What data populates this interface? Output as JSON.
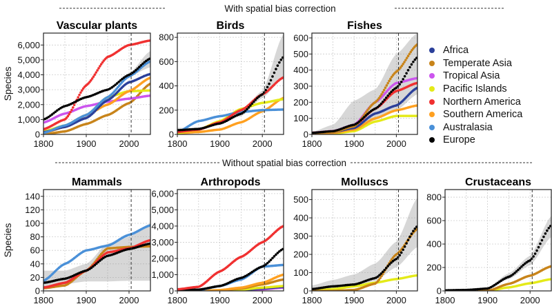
{
  "headers": {
    "top": "With spatial bias correction",
    "bottom": "Without spatial bias correction"
  },
  "legend": [
    {
      "name": "Africa",
      "color": "#2a3f9a"
    },
    {
      "name": "Temperate Asia",
      "color": "#c8841a"
    },
    {
      "name": "Tropical Asia",
      "color": "#cc55ee"
    },
    {
      "name": "Pacific Islands",
      "color": "#e4ea18"
    },
    {
      "name": "Northern America",
      "color": "#f03030"
    },
    {
      "name": "Southern America",
      "color": "#ffa020"
    },
    {
      "name": "Australasia",
      "color": "#4a90d8"
    },
    {
      "name": "Europe",
      "color": "#000000"
    }
  ],
  "chart_data": [
    {
      "type": "line",
      "title": "Vascular plants",
      "ylabel": "Species",
      "xlim": [
        1800,
        2050
      ],
      "ylim": [
        0,
        6800
      ],
      "xticks": [
        1800,
        1900,
        2000
      ],
      "yticks": [
        0,
        1000,
        2000,
        3000,
        4000,
        5000,
        6000
      ],
      "ytick_labels": [
        "0",
        "1,000",
        "2,000",
        "3,000",
        "4,000",
        "5,000",
        "6,000"
      ],
      "vline": 2005,
      "grid": true,
      "x": [
        1800,
        1850,
        1900,
        1950,
        2000,
        2050
      ],
      "series": [
        {
          "name": "Temperate Asia",
          "values": [
            0,
            200,
            700,
            1300,
            2100,
            3400
          ]
        },
        {
          "name": "Tropical Asia",
          "values": [
            800,
            1400,
            1900,
            2200,
            2400,
            2600
          ]
        },
        {
          "name": "Pacific Islands",
          "values": [
            200,
            600,
            1300,
            2500,
            2900,
            2950
          ]
        },
        {
          "name": "Southern America",
          "values": [
            100,
            500,
            1300,
            2000,
            2900,
            3800
          ]
        },
        {
          "name": "Africa",
          "values": [
            150,
            500,
            1100,
            2300,
            3500,
            4050
          ]
        },
        {
          "name": "Australasia",
          "values": [
            100,
            600,
            1300,
            2500,
            3900,
            4900
          ]
        },
        {
          "name": "Northern America",
          "values": [
            350,
            1000,
            3300,
            5200,
            6000,
            6300
          ]
        },
        {
          "name": "Europe",
          "values": [
            1000,
            1900,
            2500,
            3000,
            4000,
            5100
          ],
          "band": {
            "lower": [
              950,
              1850,
              2450,
              2950,
              3900,
              4500
            ],
            "upper": [
              1050,
              1950,
              2550,
              3050,
              4100,
              5600
            ]
          }
        }
      ]
    },
    {
      "type": "line",
      "title": "Birds",
      "ylabel": "",
      "xlim": [
        1800,
        2050
      ],
      "ylim": [
        0,
        835
      ],
      "xticks": [
        1800,
        1900,
        2000
      ],
      "yticks": [
        0,
        200,
        400,
        600,
        800
      ],
      "ytick_labels": [
        "0",
        "200",
        "400",
        "600",
        "800"
      ],
      "vline": 2005,
      "grid": true,
      "x": [
        1800,
        1850,
        1900,
        1950,
        2000,
        2050
      ],
      "series": [
        {
          "name": "Southern America",
          "values": [
            10,
            20,
            40,
            100,
            190,
            300
          ]
        },
        {
          "name": "Pacific Islands",
          "values": [
            10,
            40,
            110,
            210,
            260,
            290
          ]
        },
        {
          "name": "Australasia",
          "values": [
            20,
            110,
            150,
            185,
            200,
            205
          ]
        },
        {
          "name": "Northern America",
          "values": [
            20,
            40,
            100,
            200,
            330,
            470
          ]
        },
        {
          "name": "Europe",
          "values": [
            35,
            45,
            90,
            170,
            330,
            640
          ],
          "band": {
            "lower": [
              25,
              40,
              85,
              150,
              300,
              470
            ],
            "upper": [
              55,
              55,
              100,
              190,
              360,
              830
            ]
          }
        }
      ]
    },
    {
      "type": "line",
      "title": "Fishes",
      "ylabel": "",
      "xlim": [
        1800,
        2050
      ],
      "ylim": [
        0,
        630
      ],
      "xticks": [
        1800,
        1900,
        2000
      ],
      "yticks": [
        0,
        100,
        200,
        300,
        400,
        500,
        600
      ],
      "ytick_labels": [
        "0",
        "100",
        "200",
        "300",
        "400",
        "500",
        "600"
      ],
      "vline": 2005,
      "grid": true,
      "x": [
        1800,
        1850,
        1900,
        1950,
        2000,
        2050
      ],
      "series": [
        {
          "name": "Pacific Islands",
          "values": [
            0,
            5,
            20,
            80,
            115,
            115
          ]
        },
        {
          "name": "Southern America",
          "values": [
            5,
            10,
            30,
            100,
            150,
            180
          ]
        },
        {
          "name": "Africa",
          "values": [
            10,
            15,
            40,
            130,
            180,
            290
          ]
        },
        {
          "name": "Northern America",
          "values": [
            10,
            20,
            55,
            160,
            270,
            320
          ]
        },
        {
          "name": "Tropical Asia",
          "values": [
            10,
            20,
            60,
            200,
            320,
            350
          ]
        },
        {
          "name": "Temperate Asia",
          "values": [
            10,
            15,
            50,
            200,
            390,
            560
          ]
        },
        {
          "name": "Europe",
          "values": [
            10,
            20,
            60,
            160,
            290,
            480
          ],
          "band": {
            "lower": [
              5,
              10,
              30,
              90,
              150,
              250
            ],
            "upper": [
              15,
              60,
              210,
              280,
              500,
              630
            ]
          }
        }
      ]
    },
    {
      "type": "line",
      "title": "Mammals",
      "ylabel": "Species",
      "xlim": [
        1800,
        2050
      ],
      "ylim": [
        0,
        150
      ],
      "xticks": [
        1800,
        1900,
        2000
      ],
      "yticks": [
        0,
        20,
        40,
        60,
        80,
        100,
        120,
        140
      ],
      "ytick_labels": [
        "0",
        "20",
        "40",
        "60",
        "80",
        "100",
        "120",
        "140"
      ],
      "vline": 2005,
      "grid": true,
      "x": [
        1800,
        1850,
        1900,
        1950,
        2000,
        2050
      ],
      "series": [
        {
          "name": "Australasia",
          "values": [
            15,
            40,
            60,
            67,
            83,
            97
          ]
        },
        {
          "name": "Temperate Asia",
          "values": [
            4,
            8,
            30,
            63,
            65,
            66
          ]
        },
        {
          "name": "Northern America",
          "values": [
            5,
            12,
            30,
            57,
            63,
            75
          ]
        },
        {
          "name": "Europe",
          "values": [
            12,
            18,
            30,
            52,
            62,
            70
          ],
          "band": {
            "lower": [
              5,
              10,
              14,
              14,
              15,
              15
            ],
            "upper": [
              30,
              30,
              40,
              70,
              80,
              100
            ]
          }
        }
      ]
    },
    {
      "type": "line",
      "title": "Arthropods",
      "ylabel": "",
      "xlim": [
        1800,
        2050
      ],
      "ylim": [
        0,
        6250
      ],
      "xticks": [
        1800,
        1900,
        2000
      ],
      "yticks": [
        0,
        1000,
        2000,
        3000,
        4000,
        5000,
        6000
      ],
      "ytick_labels": [
        "0",
        "1,000",
        "2,000",
        "3,000",
        "4,000",
        "5,000",
        "6,000"
      ],
      "vline": 2005,
      "grid": true,
      "x": [
        1800,
        1850,
        1900,
        1950,
        2000,
        2050
      ],
      "series": [
        {
          "name": "Tropical Asia",
          "values": [
            0,
            0,
            0,
            30,
            100,
            200
          ]
        },
        {
          "name": "Africa",
          "values": [
            0,
            0,
            10,
            50,
            150,
            250
          ]
        },
        {
          "name": "Pacific Islands",
          "values": [
            0,
            0,
            20,
            80,
            200,
            300
          ]
        },
        {
          "name": "Temperate Asia",
          "values": [
            0,
            0,
            30,
            150,
            400,
            700
          ]
        },
        {
          "name": "Southern America",
          "values": [
            0,
            0,
            50,
            200,
            500,
            1000
          ]
        },
        {
          "name": "Australasia",
          "values": [
            0,
            50,
            300,
            700,
            1500,
            1600
          ]
        },
        {
          "name": "Europe",
          "values": [
            50,
            80,
            300,
            800,
            1500,
            2600
          ]
        },
        {
          "name": "Northern America",
          "values": [
            100,
            250,
            1200,
            2100,
            3000,
            4000
          ]
        }
      ]
    },
    {
      "type": "line",
      "title": "Molluscs",
      "ylabel": "",
      "xlim": [
        1800,
        2050
      ],
      "ylim": [
        0,
        555
      ],
      "xticks": [
        1800,
        1900,
        2000
      ],
      "yticks": [
        0,
        100,
        200,
        300,
        400,
        500
      ],
      "ytick_labels": [
        "0",
        "100",
        "200",
        "300",
        "400",
        "500"
      ],
      "vline": 2005,
      "grid": true,
      "x": [
        1800,
        1850,
        1900,
        1950,
        2000,
        2050
      ],
      "series": [
        {
          "name": "Pacific Islands",
          "values": [
            0,
            10,
            25,
            45,
            65,
            85
          ]
        },
        {
          "name": "Temperate Asia",
          "values": [
            0,
            0,
            5,
            40,
            200,
            340
          ]
        },
        {
          "name": "Europe",
          "values": [
            10,
            25,
            35,
            70,
            175,
            355
          ],
          "band": {
            "lower": [
              5,
              15,
              25,
              55,
              130,
              240
            ],
            "upper": [
              30,
              60,
              90,
              150,
              270,
              510
            ]
          }
        }
      ]
    },
    {
      "type": "line",
      "title": "Crustaceans",
      "ylabel": "",
      "xlim": [
        1800,
        2050
      ],
      "ylim": [
        0,
        865
      ],
      "xticks": [
        1800,
        1900,
        2000
      ],
      "yticks": [
        0,
        200,
        400,
        600,
        800
      ],
      "ytick_labels": [
        "0",
        "200",
        "400",
        "600",
        "800"
      ],
      "vline": 2005,
      "grid": true,
      "x": [
        1800,
        1850,
        1900,
        1950,
        2000,
        2050
      ],
      "series": [
        {
          "name": "Pacific Islands",
          "values": [
            0,
            0,
            0,
            30,
            65,
            100
          ]
        },
        {
          "name": "Temperate Asia",
          "values": [
            0,
            0,
            0,
            60,
            130,
            210
          ]
        },
        {
          "name": "Europe",
          "values": [
            5,
            8,
            20,
            120,
            260,
            560
          ],
          "band": {
            "lower": [
              3,
              6,
              15,
              100,
              220,
              460
            ],
            "upper": [
              8,
              12,
              30,
              150,
              300,
              640
            ]
          }
        }
      ]
    }
  ]
}
